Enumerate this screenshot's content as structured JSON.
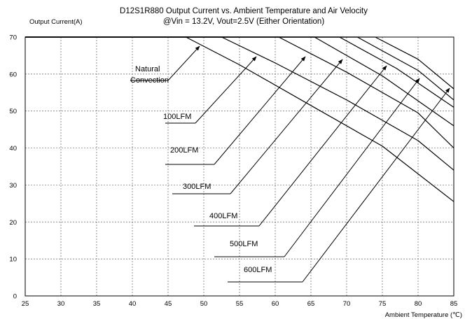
{
  "chart_data": {
    "type": "line",
    "title": "D12S1R880 Output Current vs. Ambient Temperature and Air Velocity",
    "subtitle": "@Vin = 13.2V, Vout=2.5V (Either Orientation)",
    "ylabel": "Output Current(A)",
    "xlabel": "Ambient Temperature (℃)",
    "xlim": [
      25,
      85
    ],
    "ylim": [
      0,
      70
    ],
    "xticks": [
      25,
      30,
      35,
      40,
      45,
      50,
      55,
      60,
      65,
      70,
      75,
      80,
      85
    ],
    "yticks": [
      0,
      10,
      20,
      30,
      40,
      50,
      60,
      70
    ],
    "grid": true,
    "series": [
      {
        "name": "Natural Convection",
        "label_lines": [
          "Natural",
          "Convection"
        ],
        "x": [
          25,
          47.5,
          55,
          65,
          75,
          85
        ],
        "y": [
          70,
          70,
          62.5,
          51.5,
          40.5,
          25.5
        ]
      },
      {
        "name": "100LFM",
        "x": [
          25,
          52.5,
          60,
          70,
          80,
          85
        ],
        "y": [
          70,
          70,
          63,
          53,
          42,
          34
        ]
      },
      {
        "name": "200LFM",
        "x": [
          25,
          60.5,
          70,
          80,
          85
        ],
        "y": [
          70,
          70,
          60.5,
          49.5,
          40
        ]
      },
      {
        "name": "300LFM",
        "x": [
          25,
          65.5,
          75,
          85
        ],
        "y": [
          70,
          70,
          59.5,
          46
        ]
      },
      {
        "name": "400LFM",
        "x": [
          25,
          69,
          77,
          85
        ],
        "y": [
          70,
          70,
          61.5,
          51
        ]
      },
      {
        "name": "500LFM",
        "x": [
          25,
          71.5,
          80,
          85
        ],
        "y": [
          70,
          70,
          61,
          53
        ]
      },
      {
        "name": "600LFM",
        "x": [
          25,
          74,
          80,
          85
        ],
        "y": [
          70,
          70,
          64,
          56
        ]
      }
    ]
  }
}
